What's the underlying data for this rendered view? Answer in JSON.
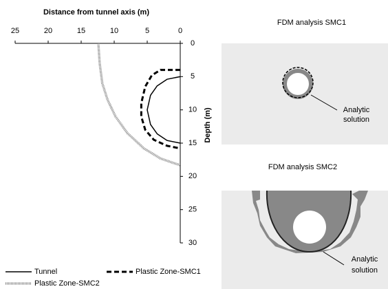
{
  "chart_data": {
    "type": "line",
    "xlabel": "Distance from tunnel axis (m)",
    "ylabel": "Depth (m)",
    "xlim": [
      25,
      0
    ],
    "xticks": [
      25,
      20,
      15,
      10,
      5,
      0
    ],
    "ylim": [
      0,
      30
    ],
    "yticks": [
      0,
      5,
      10,
      15,
      20,
      25,
      30
    ],
    "series": [
      {
        "name": "Tunnel",
        "color": "#000000",
        "style": "solid",
        "x": [
          0,
          2,
          3.5,
          4.5,
          5,
          4.5,
          3.5,
          2,
          0
        ],
        "values": [
          5,
          5.4,
          6.4,
          7.8,
          10,
          12.2,
          13.6,
          14.6,
          15
        ]
      },
      {
        "name": "Plastic Zone-SMC1",
        "color": "#000000",
        "style": "dashed",
        "x": [
          0,
          3,
          4.3,
          5.3,
          5.9,
          5.9,
          5.3,
          4,
          2,
          0
        ],
        "values": [
          4,
          4,
          4.8,
          6.5,
          9,
          11,
          13,
          14.5,
          15.4,
          15.8
        ]
      },
      {
        "name": "Plastic Zone-SMC2",
        "color": "#888888",
        "style": "striped",
        "x": [
          12.4,
          12.2,
          11.8,
          11,
          9.8,
          8,
          5.5,
          3,
          1,
          0
        ],
        "values": [
          0,
          3,
          6,
          8.5,
          11,
          13.5,
          15.8,
          17.3,
          18,
          18.3
        ]
      }
    ]
  },
  "panels": [
    {
      "title": "FDM analysis SMC1",
      "annotation": [
        "Analytic",
        "solution"
      ]
    },
    {
      "title": "FDM analysis SMC2",
      "annotation": [
        "Analytic",
        "solution"
      ]
    }
  ]
}
